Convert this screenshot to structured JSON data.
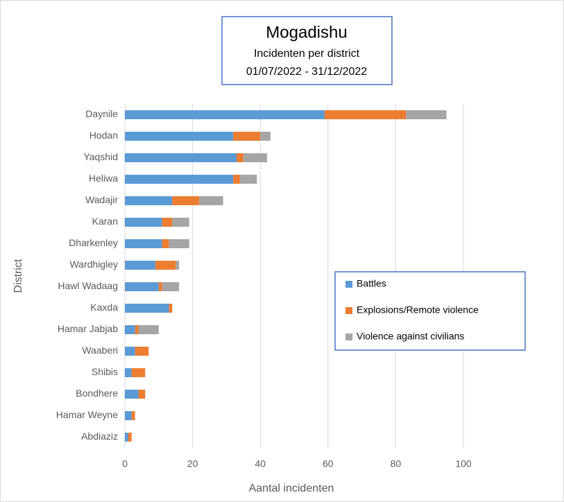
{
  "chart_data": {
    "type": "bar",
    "orientation": "horizontal",
    "stacked": true,
    "title": "Mogadishu",
    "subtitle": "Incidenten per district",
    "period": "01/07/2022 - 31/12/2022",
    "x_label": "Aantal incidenten",
    "y_label": "District",
    "categories": [
      "Daynile",
      "Hodan",
      "Yaqshid",
      "Heliwa",
      "Wadajir",
      "Karan",
      "Dharkenley",
      "Wardhigley",
      "Hawl Wadaag",
      "Kaxda",
      "Hamar Jabjab",
      "Waaberi",
      "Shibis",
      "Bondhere",
      "Hamar Weyne",
      "Abdiaziz"
    ],
    "series": [
      {
        "name": "Battles",
        "color": "#5b9bd5",
        "values": [
          59,
          32,
          33,
          32,
          14,
          11,
          11,
          9,
          10,
          13,
          3,
          3,
          2,
          4,
          2,
          1
        ]
      },
      {
        "name": "Explosions/Remote violence",
        "color": "#ed7d31",
        "values": [
          24,
          8,
          2,
          2,
          8,
          3,
          2,
          6,
          1,
          1,
          1,
          4,
          4,
          2,
          1,
          1
        ]
      },
      {
        "name": "Violence against civilians",
        "color": "#a5a5a5",
        "values": [
          12,
          3,
          7,
          5,
          7,
          5,
          6,
          1,
          5,
          0,
          6,
          0,
          0,
          0,
          0,
          0
        ]
      }
    ],
    "xlim": [
      0,
      100
    ],
    "xticks": [
      0,
      20,
      40,
      60,
      80,
      100
    ],
    "grid": true,
    "legend": "right"
  }
}
